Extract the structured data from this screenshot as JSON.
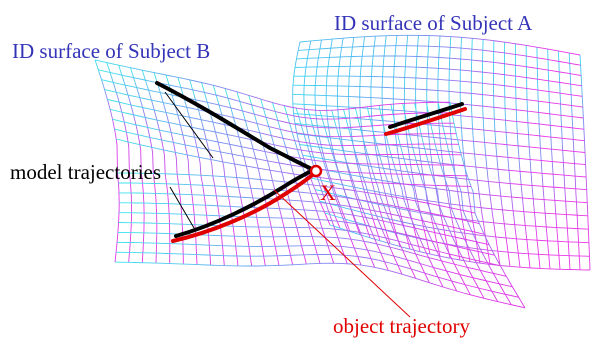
{
  "labels": {
    "subject_a": "ID surface of Subject A",
    "subject_b": "ID surface of Subject B",
    "model_trajectories": "model trajectories",
    "object_trajectory": "object trajectory",
    "intersection_point": "X"
  },
  "colors": {
    "label_blue": "#3434b8",
    "trajectory_black": "#000000",
    "trajectory_red": "#e00000",
    "mesh_start": "#38e0e8",
    "mesh_end": "#e030e8"
  }
}
